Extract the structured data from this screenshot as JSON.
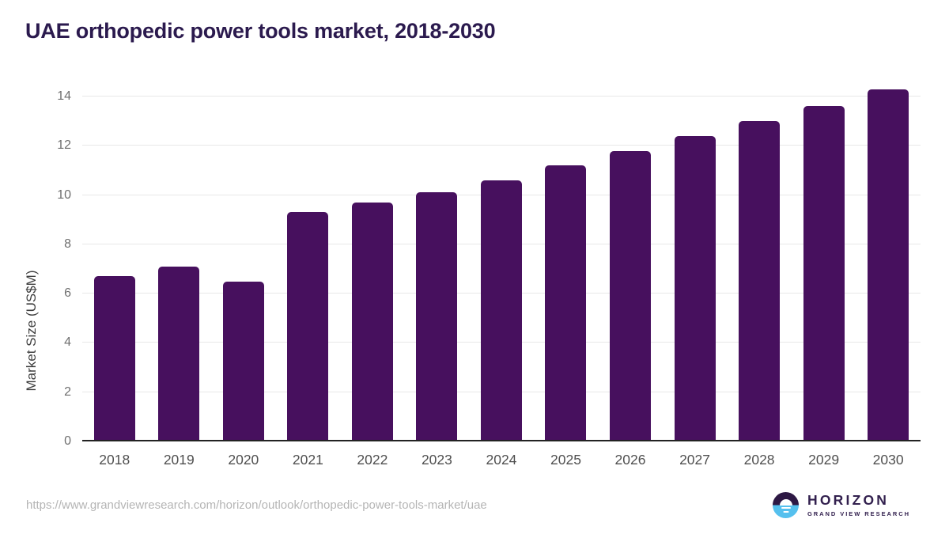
{
  "page": {
    "title": "UAE orthopedic power tools market, 2018-2030"
  },
  "chart_data": {
    "type": "bar",
    "title": "UAE orthopedic power tools market, 2018-2030",
    "categories": [
      "2018",
      "2019",
      "2020",
      "2021",
      "2022",
      "2023",
      "2024",
      "2025",
      "2026",
      "2027",
      "2028",
      "2029",
      "2030"
    ],
    "values": [
      6.7,
      7.1,
      6.5,
      9.3,
      9.7,
      10.1,
      10.6,
      11.2,
      11.8,
      12.4,
      13.0,
      13.6,
      14.3
    ],
    "xlabel": "",
    "ylabel": "Market Size (US$M)",
    "ylim": [
      0,
      14
    ],
    "yticks": [
      0,
      2,
      4,
      6,
      8,
      10,
      12,
      14
    ],
    "grid": true,
    "legend": false,
    "bar_color": "#47105e"
  },
  "footer": {
    "source_url": "https://www.grandviewresearch.com/horizon/outlook/orthopedic-power-tools-market/uae",
    "logo": {
      "brand": "HORIZON",
      "sub_brand": "GRAND VIEW RESEARCH",
      "mark_top_color": "#2d1844",
      "mark_bottom_color": "#55c0ee"
    }
  },
  "colors": {
    "title": "#2b1a4e",
    "axis_label": "#4f4f4f",
    "tick_label": "#6e6e6e",
    "axis_title": "#3f3f3f",
    "gridline": "#e8e8e8",
    "axis_line": "#222222",
    "url_text": "#b5b5b5",
    "logo_text": "#32204e"
  }
}
